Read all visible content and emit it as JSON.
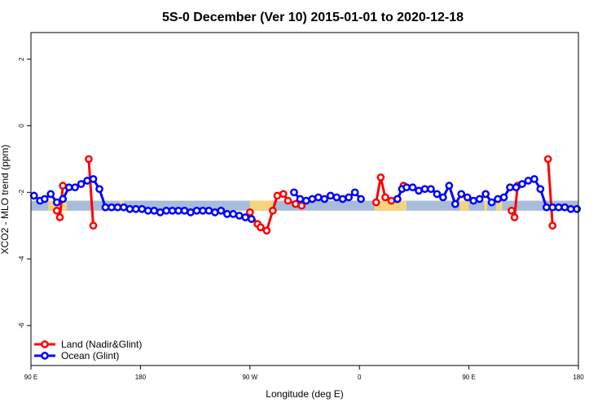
{
  "chart_data": {
    "type": "line",
    "title": "5S-0 December (Ver 10)   2015-01-01 to 2020-12-18",
    "xlabel": "Longitude (deg E)",
    "ylabel": "XCO2 - MLO trend (ppm)",
    "xlim": [
      90,
      450
    ],
    "ylim": [
      -7.2,
      2.8
    ],
    "x_ticks": [
      {
        "value": 90,
        "label": "90 E"
      },
      {
        "value": 162,
        "label": "180"
      },
      {
        "value": 234,
        "label": "90 W"
      },
      {
        "value": 306,
        "label": "0"
      },
      {
        "value": 378,
        "label": "90 E"
      },
      {
        "value": 450,
        "label": "180"
      }
    ],
    "y_ticks": [
      -6,
      -4,
      -2,
      0,
      2
    ],
    "grid": false,
    "legend_position": "bottom-left",
    "map_strip": {
      "y_range": [
        -2.55,
        -2.25
      ],
      "ocean_color": "#a7bcd8",
      "land_color": "#f6d37e",
      "land_segments": [
        [
          101.5,
          113.5
        ],
        [
          148.5,
          151
        ],
        [
          234,
          249
        ],
        [
          316,
          322
        ],
        [
          317,
          337
        ],
        [
          372,
          378
        ],
        [
          388,
          390
        ],
        [
          396,
          400
        ]
      ]
    },
    "series": [
      {
        "name": "Land (Nadir&Glint)",
        "color": "#ff0000",
        "segments": [
          [
            [
              107,
              -2.55
            ],
            [
              109,
              -2.75
            ],
            [
              111,
              -1.8
            ]
          ],
          [
            [
              128,
              -1
            ],
            [
              131,
              -3
            ]
          ],
          [
            [
              234,
              -2.6
            ],
            [
              239,
              -2.95
            ],
            [
              241,
              -3.05
            ],
            [
              245,
              -3.15
            ],
            [
              249,
              -2.55
            ],
            [
              252,
              -2.1
            ],
            [
              256,
              -2.05
            ],
            [
              259,
              -2.25
            ],
            [
              264,
              -2.35
            ],
            [
              268,
              -2.4
            ]
          ],
          [
            [
              317,
              -2.3
            ],
            [
              320,
              -1.55
            ],
            [
              323,
              -2.15
            ],
            [
              327,
              -2.25
            ],
            [
              331,
              -2.2
            ],
            [
              335,
              -1.8
            ]
          ],
          [
            [
              406,
              -2.55
            ],
            [
              408,
              -2.75
            ],
            [
              410,
              -1.8
            ]
          ],
          [
            [
              430,
              -1
            ],
            [
              433,
              -3
            ]
          ]
        ]
      },
      {
        "name": "Ocean (Glint)",
        "color": "#0000ff",
        "segments": [
          [
            [
              92,
              -2.1
            ],
            [
              96,
              -2.25
            ],
            [
              99,
              -2.2
            ],
            [
              103,
              -2.05
            ],
            [
              107,
              -2.3
            ],
            [
              111,
              -2.2
            ],
            [
              115,
              -1.85
            ],
            [
              119,
              -1.85
            ],
            [
              123,
              -1.75
            ],
            [
              127,
              -1.65
            ],
            [
              131,
              -1.6
            ],
            [
              135,
              -1.9
            ],
            [
              139,
              -2.45
            ],
            [
              143,
              -2.45
            ],
            [
              147,
              -2.45
            ],
            [
              151,
              -2.45
            ],
            [
              155,
              -2.5
            ],
            [
              159,
              -2.5
            ],
            [
              163,
              -2.5
            ],
            [
              167,
              -2.55
            ],
            [
              171,
              -2.55
            ],
            [
              175,
              -2.6
            ],
            [
              179,
              -2.55
            ],
            [
              183,
              -2.55
            ],
            [
              187,
              -2.55
            ],
            [
              191,
              -2.55
            ],
            [
              195,
              -2.6
            ],
            [
              199,
              -2.55
            ],
            [
              203,
              -2.55
            ],
            [
              207,
              -2.55
            ],
            [
              211,
              -2.6
            ],
            [
              215,
              -2.55
            ],
            [
              219,
              -2.65
            ],
            [
              223,
              -2.65
            ],
            [
              227,
              -2.7
            ],
            [
              231,
              -2.75
            ],
            [
              235,
              -2.8
            ]
          ],
          [
            [
              263,
              -2
            ],
            [
              267,
              -2.2
            ],
            [
              271,
              -2.25
            ],
            [
              275,
              -2.2
            ],
            [
              279,
              -2.15
            ],
            [
              283,
              -2.2
            ],
            [
              287,
              -2.1
            ],
            [
              291,
              -2.15
            ],
            [
              295,
              -2.2
            ],
            [
              299,
              -2.15
            ],
            [
              303,
              -2
            ],
            [
              307,
              -2.2
            ]
          ],
          [
            [
              331,
              -2.2
            ],
            [
              334,
              -1.9
            ],
            [
              337,
              -1.85
            ],
            [
              341,
              -1.85
            ],
            [
              345,
              -1.95
            ],
            [
              349,
              -1.9
            ],
            [
              353,
              -1.9
            ],
            [
              357,
              -2.05
            ],
            [
              361,
              -2.15
            ],
            [
              365,
              -1.8
            ],
            [
              369,
              -2.35
            ],
            [
              373,
              -2.05
            ],
            [
              377,
              -2.15
            ],
            [
              381,
              -2.25
            ],
            [
              385,
              -2.2
            ],
            [
              389,
              -2.05
            ],
            [
              393,
              -2.3
            ],
            [
              397,
              -2.2
            ],
            [
              401,
              -2.15
            ],
            [
              405,
              -1.85
            ],
            [
              409,
              -1.85
            ],
            [
              413,
              -1.75
            ],
            [
              417,
              -1.65
            ],
            [
              421,
              -1.6
            ],
            [
              425,
              -1.9
            ],
            [
              429,
              -2.45
            ],
            [
              433,
              -2.45
            ],
            [
              437,
              -2.45
            ],
            [
              441,
              -2.45
            ],
            [
              445,
              -2.5
            ],
            [
              449,
              -2.5
            ]
          ]
        ]
      }
    ]
  }
}
